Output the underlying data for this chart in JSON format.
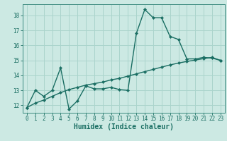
{
  "xlabel": "Humidex (Indice chaleur)",
  "bg_color": "#cce9e3",
  "line_color": "#1a6e63",
  "grid_color": "#aad4cc",
  "spine_color": "#3a8a7e",
  "xlim": [
    -0.5,
    23.5
  ],
  "ylim": [
    11.5,
    18.75
  ],
  "yticks": [
    12,
    13,
    14,
    15,
    16,
    17,
    18
  ],
  "xticks": [
    0,
    1,
    2,
    3,
    4,
    5,
    6,
    7,
    8,
    9,
    10,
    11,
    12,
    13,
    14,
    15,
    16,
    17,
    18,
    19,
    20,
    21,
    22,
    23
  ],
  "curve1_x": [
    0,
    1,
    2,
    3,
    4,
    5,
    6,
    7,
    8,
    9,
    10,
    11,
    12,
    13,
    14,
    15,
    16,
    17,
    18,
    19,
    20,
    21,
    22,
    23
  ],
  "curve1_y": [
    11.85,
    13.0,
    12.6,
    13.0,
    14.5,
    11.75,
    12.3,
    13.3,
    13.1,
    13.1,
    13.2,
    13.05,
    13.0,
    16.8,
    18.4,
    17.85,
    17.85,
    16.6,
    16.4,
    15.1,
    15.1,
    15.2,
    15.15,
    15.0
  ],
  "curve2_x": [
    0,
    1,
    2,
    3,
    4,
    5,
    6,
    7,
    8,
    9,
    10,
    11,
    12,
    13,
    14,
    15,
    16,
    17,
    18,
    19,
    20,
    21,
    22,
    23
  ],
  "curve2_y": [
    11.85,
    12.15,
    12.35,
    12.6,
    12.85,
    13.05,
    13.2,
    13.35,
    13.45,
    13.55,
    13.7,
    13.8,
    13.95,
    14.1,
    14.25,
    14.4,
    14.55,
    14.7,
    14.82,
    14.93,
    15.02,
    15.12,
    15.2,
    15.0
  ],
  "marker": "D",
  "markersize": 2.2,
  "linewidth": 1.0,
  "tick_fontsize": 5.5,
  "xlabel_fontsize": 7.0
}
